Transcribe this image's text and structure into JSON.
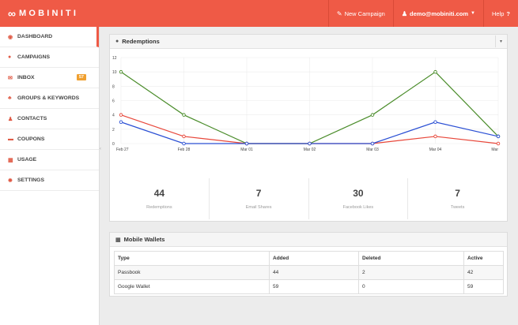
{
  "header": {
    "logo_text": "MOBINITI",
    "new_campaign": "New Campaign",
    "user": "demo@mobiniti.com",
    "help": "Help"
  },
  "sidebar": {
    "items": [
      {
        "label": "DASHBOARD",
        "icon": "dashboard-icon"
      },
      {
        "label": "CAMPAIGNS",
        "icon": "comment-icon"
      },
      {
        "label": "INBOX",
        "icon": "envelope-icon",
        "badge": "57"
      },
      {
        "label": "GROUPS & KEYWORDS",
        "icon": "users-icon"
      },
      {
        "label": "CONTACTS",
        "icon": "user-icon"
      },
      {
        "label": "COUPONS",
        "icon": "ticket-icon"
      },
      {
        "label": "USAGE",
        "icon": "chart-icon"
      },
      {
        "label": "SETTINGS",
        "icon": "gear-icon"
      }
    ]
  },
  "redemptions": {
    "title": "Redemptions"
  },
  "chart_data": {
    "type": "line",
    "categories": [
      "Feb 27",
      "Feb 28",
      "Mar 01",
      "Mar 02",
      "Mar 03",
      "Mar 04",
      "Mar"
    ],
    "y_ticks": [
      "12",
      "10",
      "8",
      "6",
      "4",
      "2",
      "0"
    ],
    "ylim": [
      0,
      12
    ],
    "grid": true,
    "legend": "none",
    "series": [
      {
        "color": "#4a8c2a",
        "values": [
          10,
          4,
          0,
          0,
          4,
          10,
          1
        ]
      },
      {
        "color": "#e8473a",
        "values": [
          4,
          1,
          0,
          0,
          0,
          1,
          0
        ]
      },
      {
        "color": "#2a4fd4",
        "values": [
          3,
          0,
          0,
          0,
          0,
          3,
          1
        ]
      }
    ]
  },
  "stats": [
    {
      "value": "44",
      "label": "Redemptions"
    },
    {
      "value": "7",
      "label": "Email Shares"
    },
    {
      "value": "30",
      "label": "Facebook Likes"
    },
    {
      "value": "7",
      "label": "Tweets"
    }
  ],
  "wallets": {
    "title": "Mobile Wallets",
    "columns": [
      "Type",
      "Added",
      "Deleted",
      "Active"
    ],
    "rows": [
      [
        "Passbook",
        "44",
        "2",
        "42"
      ],
      [
        "Google Wallet",
        "59",
        "0",
        "59"
      ]
    ]
  }
}
